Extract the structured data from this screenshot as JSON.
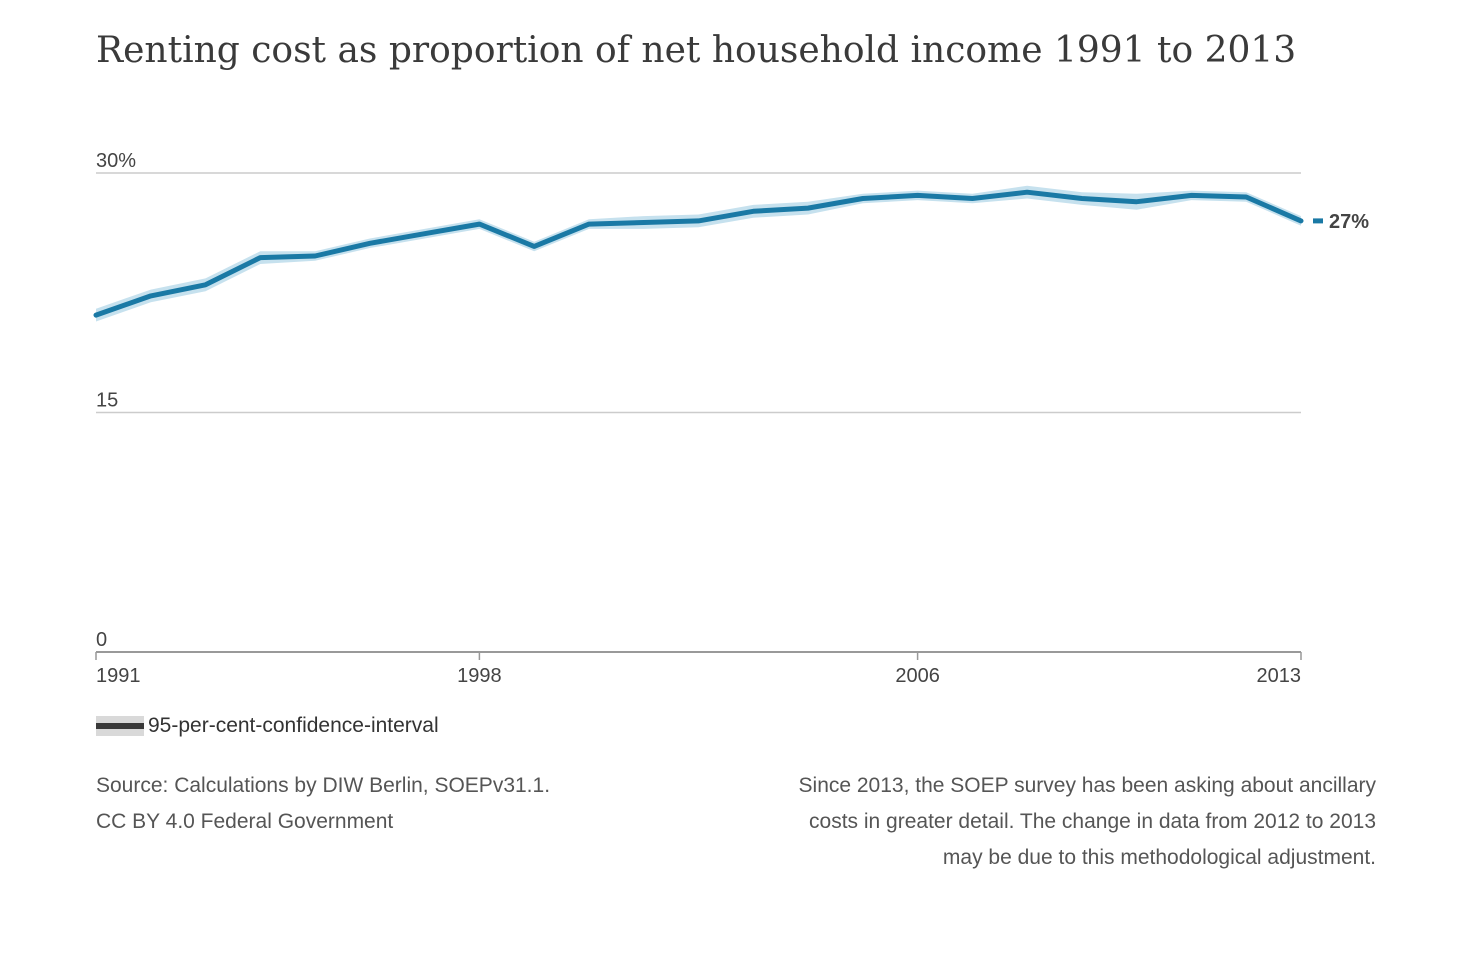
{
  "title": "Renting cost as proportion of net household income 1991 to 2013",
  "chart_data": {
    "type": "line",
    "title": "Renting cost as proportion of net household income 1991 to 2013",
    "x": [
      1991,
      1992,
      1993,
      1994,
      1995,
      1996,
      1997,
      1998,
      1999,
      2000,
      2001,
      2002,
      2003,
      2004,
      2005,
      2006,
      2007,
      2008,
      2009,
      2010,
      2011,
      2012,
      2013
    ],
    "series": [
      {
        "values": [
          21.1,
          22.3,
          23.0,
          24.7,
          24.8,
          25.6,
          26.2,
          26.8,
          25.4,
          26.8,
          26.9,
          27.0,
          27.6,
          27.8,
          28.4,
          28.6,
          28.4,
          28.8,
          28.4,
          28.2,
          28.6,
          28.5,
          27.0
        ],
        "lower": [
          20.7,
          21.9,
          22.6,
          24.3,
          24.5,
          25.3,
          25.9,
          26.5,
          25.1,
          26.5,
          26.5,
          26.6,
          27.2,
          27.4,
          28.1,
          28.3,
          28.1,
          28.4,
          28.0,
          27.7,
          28.3,
          28.2,
          26.7
        ],
        "upper": [
          21.5,
          22.7,
          23.4,
          25.1,
          25.1,
          25.9,
          26.5,
          27.1,
          25.7,
          27.1,
          27.3,
          27.4,
          28.0,
          28.2,
          28.7,
          28.9,
          28.7,
          29.2,
          28.8,
          28.7,
          28.9,
          28.8,
          27.3
        ],
        "color": "#1a79a5",
        "band_color": "#c6e1ee"
      }
    ],
    "end_label": "27%",
    "ylim": [
      0,
      30
    ],
    "yticks": [
      0,
      15,
      30
    ],
    "ytick_labels": [
      "0",
      "15",
      "30%"
    ],
    "xticks": [
      1991,
      1998,
      2006,
      2013
    ],
    "xtick_labels": [
      "1991",
      "1998",
      "2006",
      "2013"
    ],
    "grid": true,
    "legend": {
      "label": "95-per-cent-confidence-interval",
      "placement": "bottom-left"
    }
  },
  "source": {
    "line1": "Source: Calculations by DIW Berlin, SOEPv31.1.",
    "line2": "CC BY 4.0 Federal Government"
  },
  "note": {
    "line1": "Since 2013, the SOEP survey has been asking about ancillary",
    "line2": "costs in greater detail. The change in data from 2012 to 2013",
    "line3": "may be due to this methodological adjustment."
  },
  "colors": {
    "line": "#1a79a5",
    "band": "#c6e1ee",
    "grid": "#cccccc",
    "text": "#444444"
  }
}
